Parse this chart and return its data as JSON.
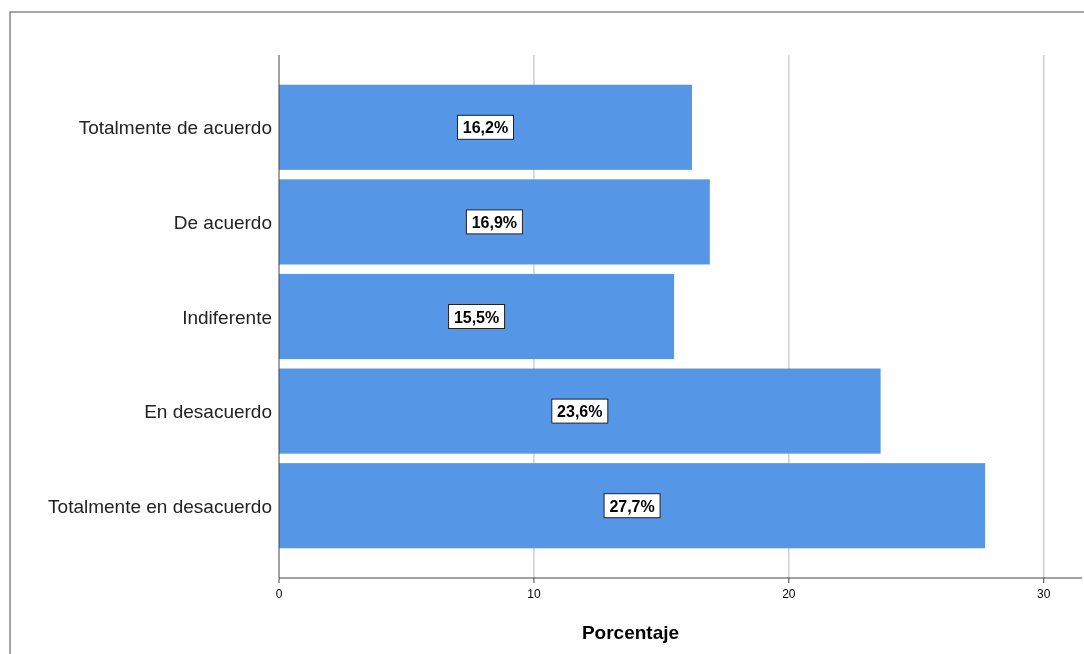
{
  "chart_data": {
    "type": "bar",
    "orientation": "horizontal",
    "xlabel": "Porcentaje",
    "categories": [
      "Totalmente de acuerdo",
      "De acuerdo",
      "Indiferente",
      "En desacuerdo",
      "Totalmente en desacuerdo"
    ],
    "values": [
      16.2,
      16.9,
      15.5,
      23.6,
      27.7
    ],
    "value_labels": [
      "16,2%",
      "16,9%",
      "15,5%",
      "23,6%",
      "27,7%"
    ],
    "color": "#5597e6",
    "xlim": [
      0,
      31.5
    ],
    "xticks": [
      0,
      10,
      20,
      30
    ],
    "grid": "x"
  }
}
